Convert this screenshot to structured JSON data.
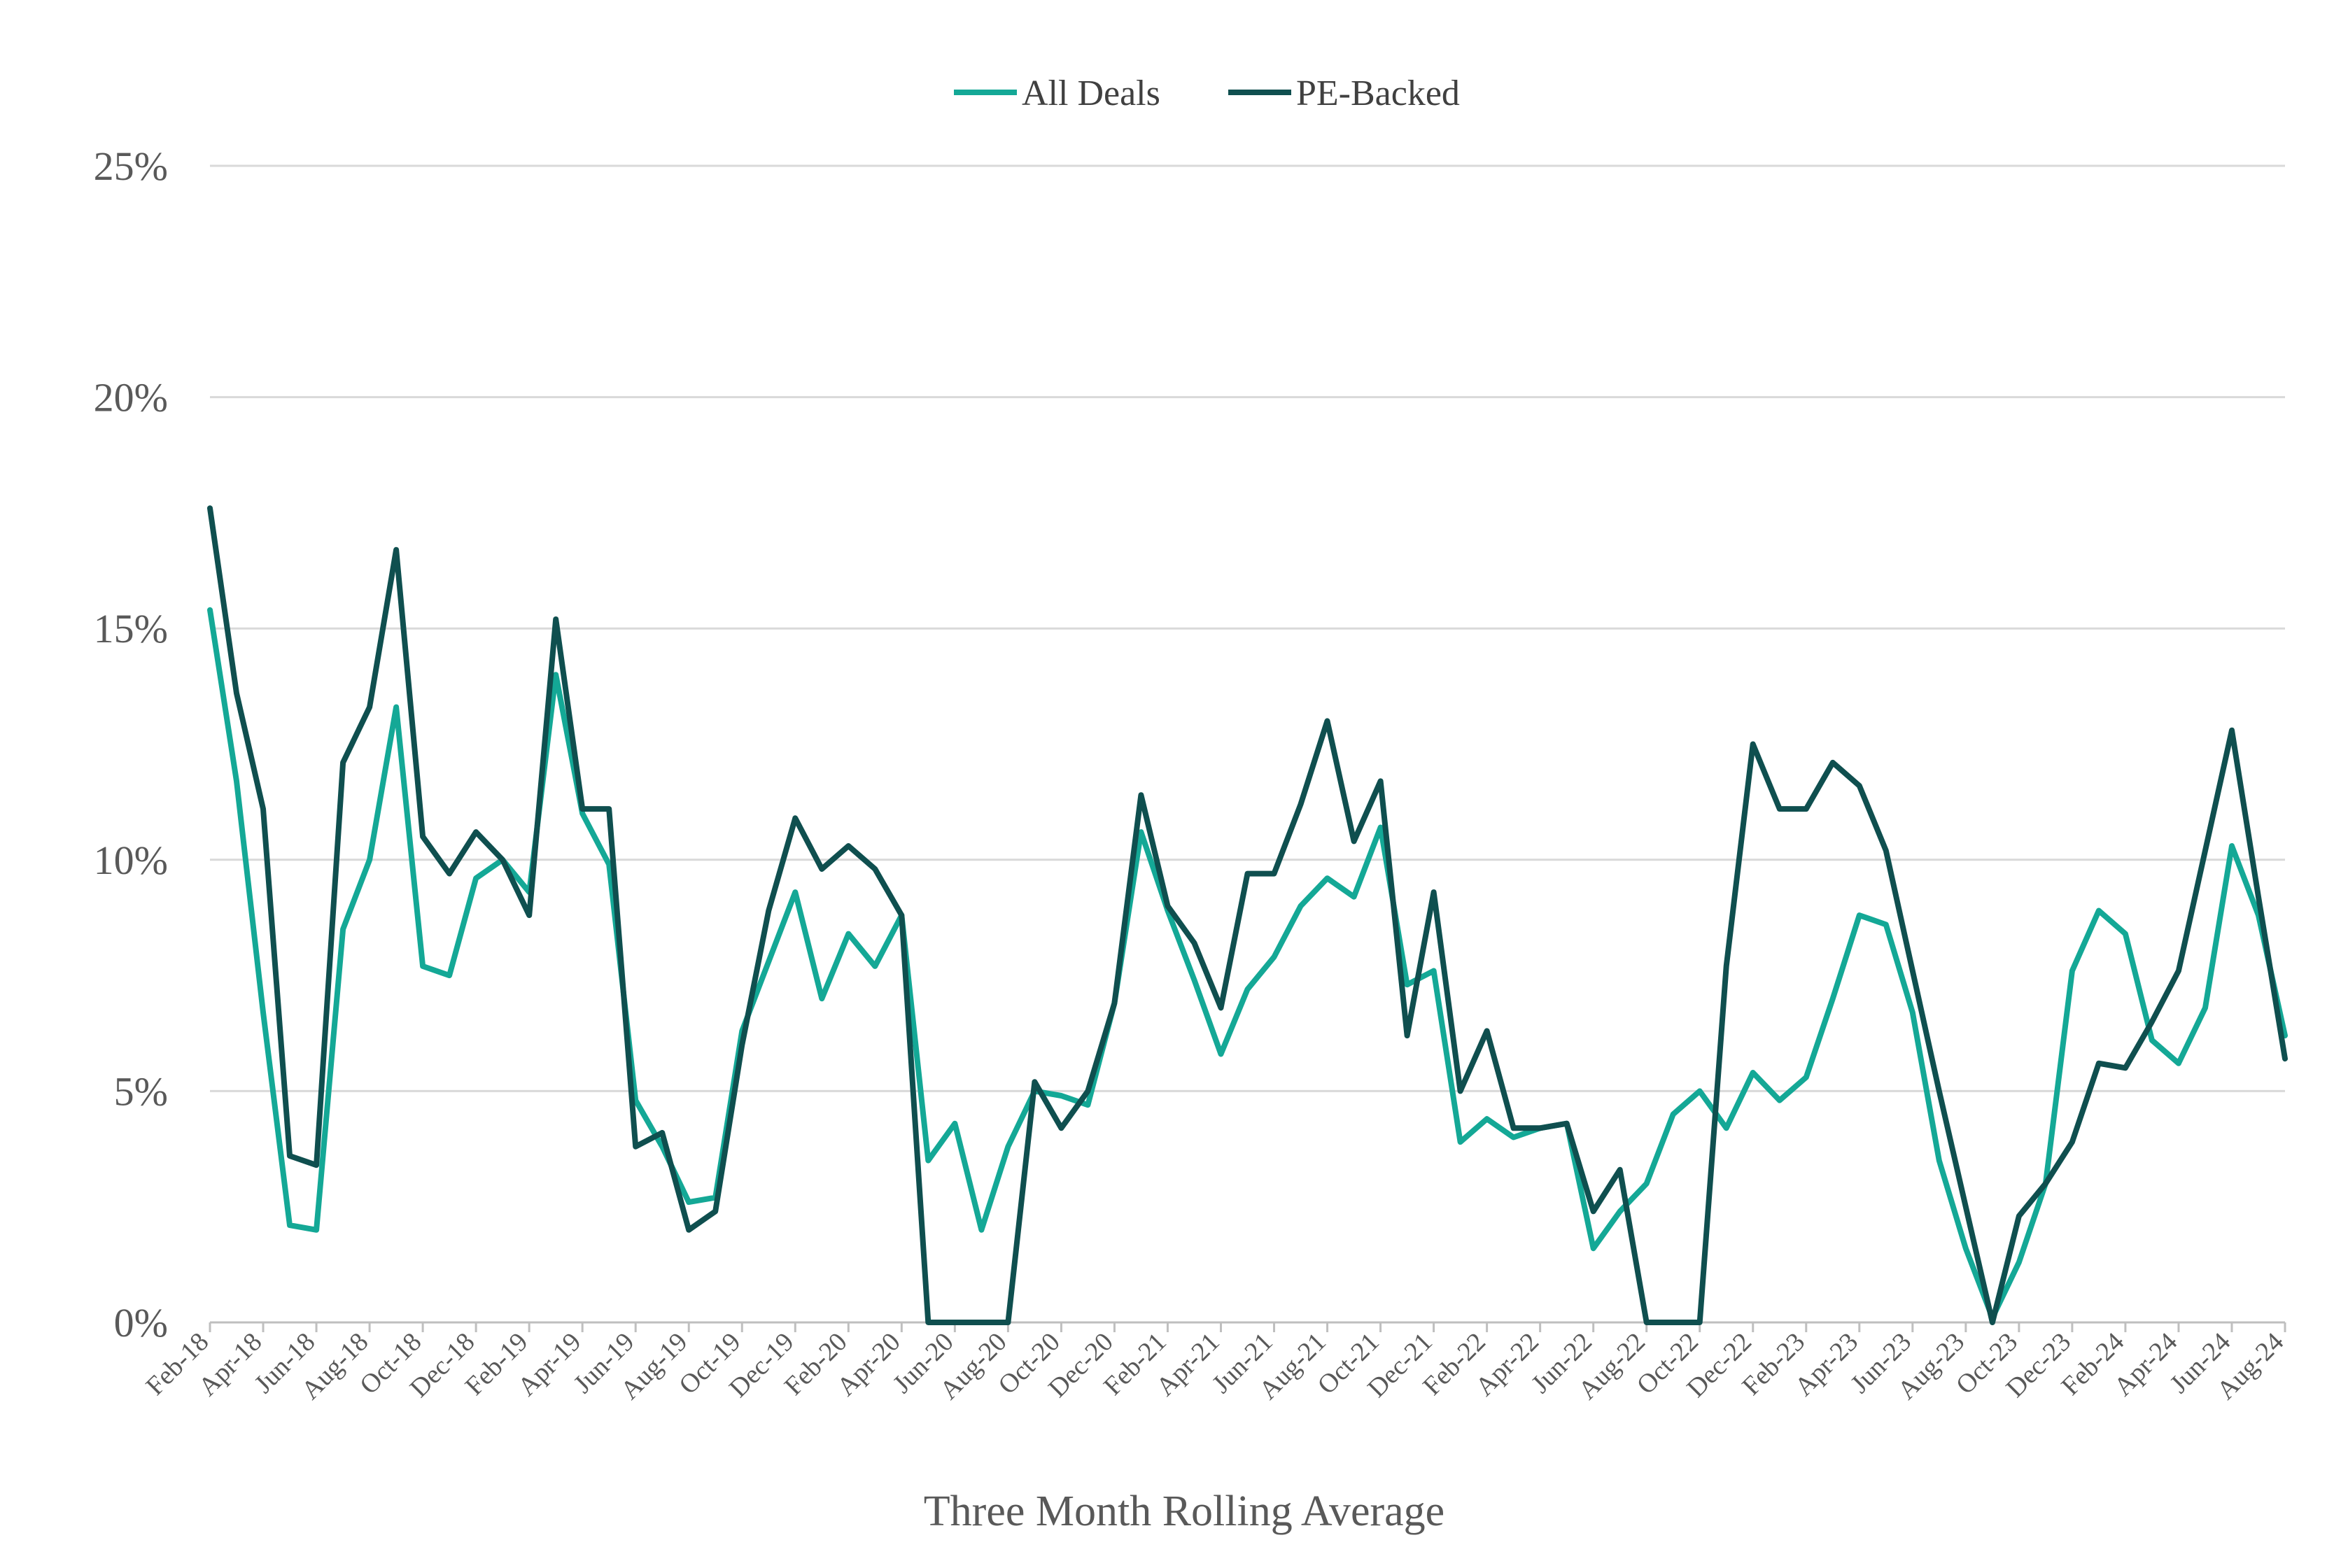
{
  "chart_data": {
    "type": "line",
    "title": "",
    "xlabel": "Three Month Rolling Average",
    "ylabel": "",
    "ylim": [
      0,
      25
    ],
    "yticks": [
      "0%",
      "5%",
      "10%",
      "15%",
      "20%",
      "25%"
    ],
    "grid": true,
    "legend_position": "top-center",
    "x": [
      "Feb-18",
      "Mar-18",
      "Apr-18",
      "May-18",
      "Jun-18",
      "Jul-18",
      "Aug-18",
      "Sep-18",
      "Oct-18",
      "Nov-18",
      "Dec-18",
      "Jan-19",
      "Feb-19",
      "Mar-19",
      "Apr-19",
      "May-19",
      "Jun-19",
      "Jul-19",
      "Aug-19",
      "Sep-19",
      "Oct-19",
      "Nov-19",
      "Dec-19",
      "Jan-20",
      "Feb-20",
      "Mar-20",
      "Apr-20",
      "May-20",
      "Jun-20",
      "Jul-20",
      "Aug-20",
      "Sep-20",
      "Oct-20",
      "Nov-20",
      "Dec-20",
      "Jan-21",
      "Feb-21",
      "Mar-21",
      "Apr-21",
      "May-21",
      "Jun-21",
      "Jul-21",
      "Aug-21",
      "Sep-21",
      "Oct-21",
      "Nov-21",
      "Dec-21",
      "Jan-22",
      "Feb-22",
      "Mar-22",
      "Apr-22",
      "May-22",
      "Jun-22",
      "Jul-22",
      "Aug-22",
      "Sep-22",
      "Oct-22",
      "Nov-22",
      "Dec-22",
      "Jan-23",
      "Feb-23",
      "Mar-23",
      "Apr-23",
      "May-23",
      "Jun-23",
      "Jul-23",
      "Aug-23",
      "Sep-23",
      "Oct-23",
      "Nov-23",
      "Dec-23",
      "Jan-24",
      "Feb-24",
      "Mar-24",
      "Apr-24",
      "May-24",
      "Jun-24",
      "Jul-24",
      "Aug-24"
    ],
    "xtick_labels": [
      "Feb-18",
      "Apr-18",
      "Jun-18",
      "Aug-18",
      "Oct-18",
      "Dec-18",
      "Feb-19",
      "Apr-19",
      "Jun-19",
      "Aug-19",
      "Oct-19",
      "Dec-19",
      "Feb-20",
      "Apr-20",
      "Jun-20",
      "Aug-20",
      "Oct-20",
      "Dec-20",
      "Feb-21",
      "Apr-21",
      "Jun-21",
      "Aug-21",
      "Oct-21",
      "Dec-21",
      "Feb-22",
      "Apr-22",
      "Jun-22",
      "Aug-22",
      "Oct-22",
      "Dec-22",
      "Feb-23",
      "Apr-23",
      "Jun-23",
      "Aug-23",
      "Oct-23",
      "Dec-23",
      "Feb-24",
      "Apr-24",
      "Jun-24",
      "Aug-24"
    ],
    "series": [
      {
        "name": "All Deals",
        "color": "#14a896",
        "values": [
          15.4,
          11.7,
          6.7,
          2.1,
          2.0,
          8.5,
          10.0,
          13.3,
          7.7,
          7.5,
          9.6,
          10.0,
          9.3,
          14.0,
          11.0,
          9.9,
          4.8,
          3.8,
          2.6,
          2.7,
          6.3,
          7.8,
          9.3,
          7.0,
          8.4,
          7.7,
          8.8,
          3.5,
          4.3,
          2.0,
          3.8,
          5.0,
          4.9,
          4.7,
          6.9,
          10.6,
          8.9,
          7.4,
          5.8,
          7.2,
          7.9,
          9.0,
          9.6,
          9.2,
          10.7,
          7.3,
          7.6,
          3.9,
          4.4,
          4.0,
          4.2,
          4.3,
          1.6,
          2.4,
          3.0,
          4.5,
          5.0,
          4.2,
          5.4,
          4.8,
          5.3,
          7.0,
          8.8,
          8.6,
          6.7,
          3.5,
          1.6,
          0.1,
          1.3,
          3.0,
          7.6,
          8.9,
          8.4,
          6.1,
          5.6,
          6.8,
          10.3,
          8.8,
          6.2
        ]
      },
      {
        "name": "PE-Backed",
        "color": "#0f4f4f",
        "values": [
          17.6,
          13.6,
          11.1,
          3.6,
          3.4,
          12.1,
          13.3,
          16.7,
          10.5,
          9.7,
          10.6,
          10.0,
          8.8,
          15.2,
          11.1,
          11.1,
          3.8,
          4.1,
          2.0,
          2.4,
          6.0,
          8.9,
          10.9,
          9.8,
          10.3,
          9.8,
          8.8,
          0.0,
          0.0,
          0.0,
          0.0,
          5.2,
          4.2,
          5.0,
          6.9,
          11.4,
          9.0,
          8.2,
          6.8,
          9.7,
          9.7,
          11.2,
          13.0,
          10.4,
          11.7,
          6.2,
          9.3,
          5.0,
          6.3,
          4.2,
          4.2,
          4.3,
          2.4,
          3.3,
          0.0,
          0.0,
          0.0,
          7.7,
          12.5,
          11.1,
          11.1,
          12.1,
          11.6,
          10.2,
          7.6,
          5.0,
          2.5,
          0.0,
          2.3,
          3.0,
          3.9,
          5.6,
          5.5,
          6.5,
          7.6,
          10.2,
          12.8,
          9.2,
          5.7
        ]
      }
    ]
  }
}
